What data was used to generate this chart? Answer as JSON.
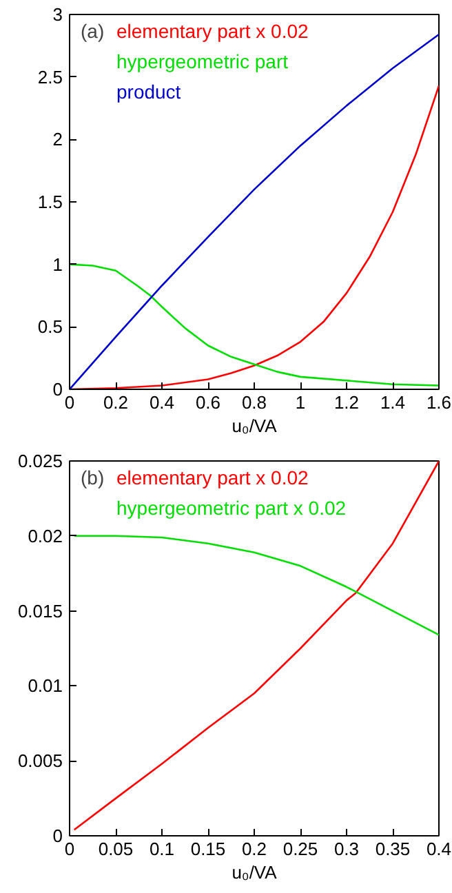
{
  "chart_data": [
    {
      "type": "line",
      "xlabel": "u₀/VA",
      "annotations": [
        "(a)"
      ],
      "xlim": [
        0,
        1.6
      ],
      "ylim": [
        0,
        3
      ],
      "xticks": [
        0,
        0.2,
        0.4,
        0.6,
        0.8,
        1,
        1.2,
        1.4,
        1.6
      ],
      "yticks": [
        0,
        0.5,
        1,
        1.5,
        2,
        2.5,
        3
      ],
      "grid": false,
      "legend": "top left",
      "series": [
        {
          "name": "elementary part x 0.02",
          "color": "#ff0000",
          "x": [
            0,
            0.2,
            0.4,
            0.6,
            0.7,
            0.8,
            0.9,
            1.0,
            1.1,
            1.2,
            1.3,
            1.4,
            1.5,
            1.6
          ],
          "values": [
            0,
            0.01,
            0.03,
            0.08,
            0.13,
            0.19,
            0.27,
            0.38,
            0.54,
            0.77,
            1.06,
            1.42,
            1.88,
            2.43
          ]
        },
        {
          "name": "hypergeometric part",
          "color": "#00dd00",
          "x": [
            0,
            0.1,
            0.2,
            0.3,
            0.35,
            0.4,
            0.5,
            0.6,
            0.7,
            0.8,
            0.9,
            1.0,
            1.2,
            1.4,
            1.6
          ],
          "values": [
            1.0,
            0.99,
            0.95,
            0.82,
            0.75,
            0.66,
            0.49,
            0.35,
            0.26,
            0.2,
            0.14,
            0.1,
            0.07,
            0.04,
            0.03
          ]
        },
        {
          "name": "product",
          "color": "#0000cc",
          "x": [
            0,
            0.2,
            0.4,
            0.6,
            0.8,
            1.0,
            1.2,
            1.4,
            1.6
          ],
          "values": [
            0,
            0.42,
            0.83,
            1.22,
            1.6,
            1.95,
            2.27,
            2.57,
            2.84
          ]
        }
      ]
    },
    {
      "type": "line",
      "xlabel": "u₀/VA",
      "annotations": [
        "(b)"
      ],
      "xlim": [
        0,
        0.4
      ],
      "ylim": [
        0,
        0.025
      ],
      "xticks": [
        0,
        0.05,
        0.1,
        0.15,
        0.2,
        0.25,
        0.3,
        0.35,
        0.4
      ],
      "yticks": [
        0,
        0.005,
        0.01,
        0.015,
        0.02,
        0.025
      ],
      "grid": false,
      "legend": "top left",
      "series": [
        {
          "name": "elementary part x 0.02",
          "color": "#ff0000",
          "x": [
            0.005,
            0.05,
            0.1,
            0.15,
            0.2,
            0.25,
            0.3,
            0.31,
            0.35,
            0.4
          ],
          "values": [
            0.0004,
            0.0025,
            0.0048,
            0.0072,
            0.0095,
            0.0125,
            0.0157,
            0.0162,
            0.0195,
            0.025
          ]
        },
        {
          "name": "hypergeometric part x 0.02",
          "color": "#00dd00",
          "x": [
            0.005,
            0.05,
            0.1,
            0.15,
            0.2,
            0.25,
            0.3,
            0.35,
            0.4
          ],
          "values": [
            0.02,
            0.02,
            0.0199,
            0.0195,
            0.0189,
            0.018,
            0.0166,
            0.015,
            0.0134
          ]
        }
      ]
    }
  ]
}
